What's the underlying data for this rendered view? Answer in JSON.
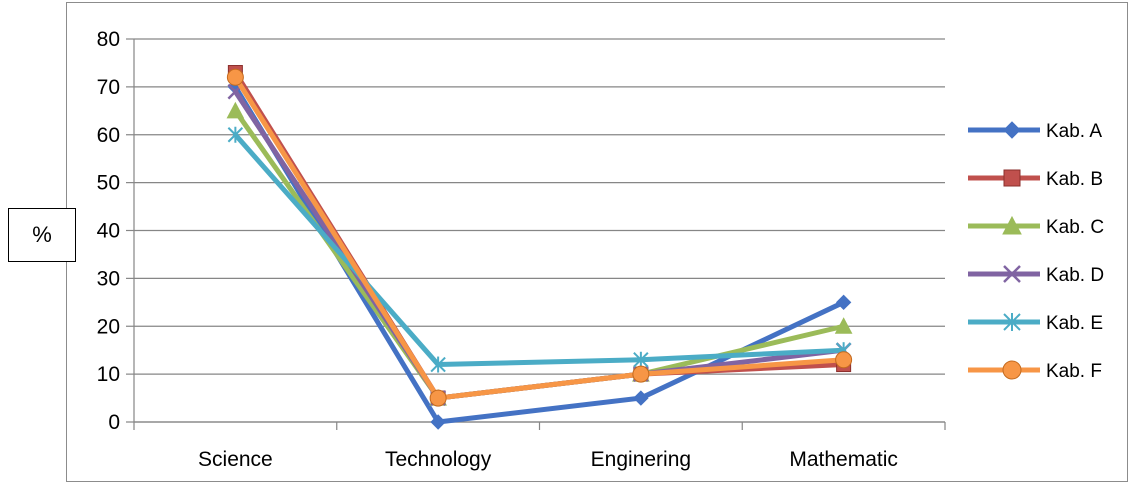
{
  "chart_data": {
    "type": "line",
    "title": "",
    "xlabel": "",
    "ylabel": "%",
    "categories": [
      "Science",
      "Technology",
      "Enginering",
      "Mathematic"
    ],
    "ylim": [
      0,
      80
    ],
    "yticks": [
      0,
      10,
      20,
      30,
      40,
      50,
      60,
      70,
      80
    ],
    "grid": true,
    "legend_position": "right",
    "series": [
      {
        "name": "Kab. A",
        "color": "#4472c4",
        "marker": "diamond",
        "values": [
          70,
          0,
          5,
          25
        ]
      },
      {
        "name": "Kab. B",
        "color": "#c0504d",
        "marker": "square",
        "values": [
          73,
          5,
          10,
          12
        ]
      },
      {
        "name": "Kab. C",
        "color": "#9bbb59",
        "marker": "triangle",
        "values": [
          65,
          5,
          10,
          20
        ]
      },
      {
        "name": "Kab. D",
        "color": "#8064a2",
        "marker": "x",
        "values": [
          69,
          5,
          10,
          15
        ]
      },
      {
        "name": "Kab. E",
        "color": "#4bacc6",
        "marker": "star",
        "values": [
          60,
          12,
          13,
          15
        ]
      },
      {
        "name": "Kab. F",
        "color": "#f79646",
        "marker": "circle",
        "values": [
          72,
          5,
          10,
          13
        ]
      }
    ]
  }
}
